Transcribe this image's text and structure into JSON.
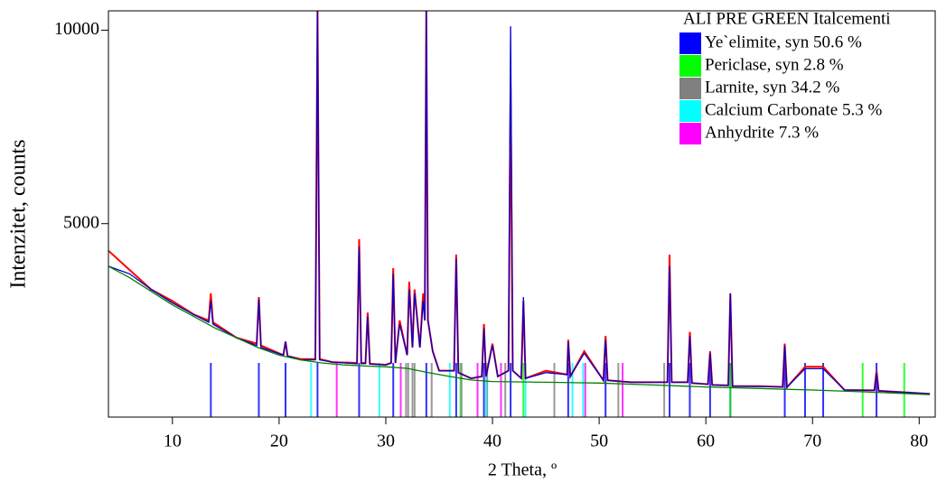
{
  "chart_data": {
    "type": "line",
    "x_label": "2 Theta, º",
    "y_label": "Intenzitet, counts",
    "legend_title": "ALI PRE GREEN Italcementi",
    "xlim": [
      4,
      81.5
    ],
    "ylim": [
      0,
      10500
    ],
    "xticks": [
      10,
      20,
      30,
      40,
      50,
      60,
      70,
      80
    ],
    "yticks": [
      5000,
      10000
    ],
    "x": [
      4,
      6,
      8,
      10,
      12,
      13.4,
      13.6,
      13.8,
      16,
      17.9,
      18.1,
      18.3,
      20.4,
      20.6,
      20.8,
      22,
      23.4,
      23.6,
      23.8,
      25,
      27.3,
      27.5,
      27.7,
      28.1,
      28.3,
      28.5,
      30,
      30.5,
      30.7,
      30.9,
      31.3,
      32.0,
      32.2,
      32.5,
      32.7,
      33.2,
      33.5,
      33.65,
      33.8,
      33.95,
      34.4,
      35,
      36.4,
      36.6,
      36.8,
      38,
      39.0,
      39.2,
      39.4,
      40.0,
      40.5,
      41.5,
      41.7,
      41.9,
      42.7,
      42.9,
      43.1,
      45,
      47.0,
      47.1,
      47.3,
      48.6,
      50.4,
      50.6,
      50.8,
      53,
      56.4,
      56.6,
      56.8,
      58.3,
      58.5,
      58.7,
      60.2,
      60.4,
      60.6,
      62.1,
      62.3,
      62.5,
      65,
      67.2,
      67.4,
      67.6,
      69.3,
      71.0,
      73,
      75.8,
      76.0,
      76.2,
      78,
      81
    ],
    "series": [
      {
        "color": "#ff0000",
        "values": [
          4300,
          3800,
          3300,
          3000,
          2650,
          2500,
          3200,
          2450,
          2050,
          1900,
          3100,
          1850,
          1600,
          1950,
          1580,
          1500,
          1500,
          10500,
          1500,
          1420,
          1400,
          4600,
          1400,
          1400,
          2700,
          1380,
          1350,
          1400,
          3850,
          1400,
          2500,
          1600,
          3500,
          1800,
          3300,
          1800,
          3200,
          2500,
          10500,
          2500,
          1700,
          1200,
          1200,
          4200,
          1150,
          1000,
          1050,
          2400,
          1050,
          1900,
          1050,
          1200,
          8600,
          1200,
          1000,
          3000,
          1000,
          1200,
          1100,
          2000,
          1050,
          1700,
          950,
          2100,
          950,
          900,
          900,
          4200,
          900,
          900,
          2200,
          880,
          850,
          1700,
          830,
          820,
          3200,
          800,
          800,
          780,
          1900,
          770,
          1300,
          1300,
          700,
          690,
          1200,
          680,
          650,
          600
        ]
      },
      {
        "color": "#0000cc",
        "values": [
          3900,
          3700,
          3300,
          2950,
          2650,
          2450,
          3000,
          2400,
          2050,
          1850,
          3050,
          1800,
          1600,
          1950,
          1580,
          1480,
          1480,
          10500,
          1480,
          1420,
          1380,
          4400,
          1380,
          1380,
          2600,
          1370,
          1350,
          1400,
          3700,
          1400,
          2400,
          1600,
          3300,
          1800,
          3200,
          1800,
          3000,
          2500,
          10500,
          2500,
          1700,
          1200,
          1200,
          4100,
          1150,
          1000,
          1050,
          2300,
          1050,
          1850,
          1050,
          1200,
          10100,
          1200,
          1000,
          3100,
          1000,
          1150,
          1100,
          1950,
          1050,
          1650,
          950,
          2000,
          950,
          900,
          900,
          3900,
          900,
          900,
          2100,
          880,
          850,
          1650,
          830,
          820,
          3200,
          800,
          790,
          780,
          1850,
          770,
          1250,
          1250,
          700,
          690,
          1150,
          680,
          650,
          600
        ]
      },
      {
        "color": "#008000",
        "x": [
          4,
          6,
          8,
          10,
          12,
          14,
          16,
          18,
          20,
          22,
          24,
          26,
          28,
          30,
          32,
          34,
          36,
          38,
          40,
          45,
          50,
          55,
          60,
          65,
          70,
          75,
          81
        ],
        "values": [
          3900,
          3600,
          3250,
          2900,
          2600,
          2300,
          2050,
          1800,
          1600,
          1480,
          1400,
          1350,
          1320,
          1300,
          1260,
          1150,
          1050,
          960,
          920,
          900,
          880,
          830,
          780,
          740,
          700,
          650,
          580
        ]
      }
    ],
    "phases": [
      {
        "name": "Ye`elimite, syn 50.6 %",
        "color": "#0000ff",
        "peaks": [
          13.6,
          18.1,
          20.6,
          23.6,
          27.5,
          30.7,
          33.8,
          36.6,
          39.2,
          41.7,
          47.1,
          50.6,
          56.6,
          58.5,
          60.4,
          62.3,
          67.4,
          69.3,
          71.0,
          76.0
        ]
      },
      {
        "name": "Periclase, syn 2.8 %",
        "color": "#00ff00",
        "peaks": [
          37.0,
          42.9,
          62.3,
          74.7,
          78.6
        ]
      },
      {
        "name": "Larnite, syn 34.2 %",
        "color": "#808080",
        "peaks": [
          31.9,
          32.1,
          32.5,
          32.7,
          34.3,
          37.1,
          39.5,
          41.2,
          45.8,
          51.8,
          56.1
        ]
      },
      {
        "name": "Calcium Carbonate 5.3 %",
        "color": "#00ffff",
        "peaks": [
          23.0,
          29.4,
          36.0,
          39.4,
          43.1,
          47.5,
          48.5
        ]
      },
      {
        "name": "Anhydrite 7.3 %",
        "color": "#ff00ff",
        "peaks": [
          25.4,
          31.4,
          38.6,
          40.8,
          48.7,
          52.2
        ]
      }
    ]
  }
}
